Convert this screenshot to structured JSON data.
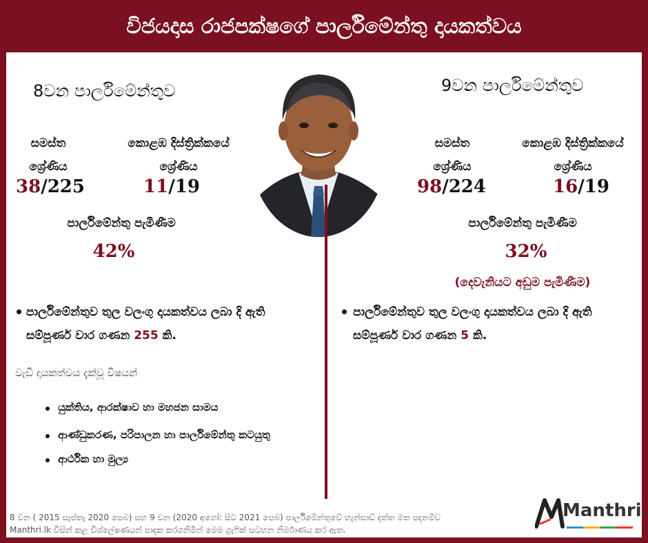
{
  "title": "විජයදාස රාජපක්ෂගේ පාර්ලිමේන්තු දායකත්වය",
  "left": {
    "parliament": "8වන පාර්ලිමේන්තුව",
    "overall_label_1": "සමස්ත",
    "overall_label_2": "ශ්‍රේණිය",
    "overall_rank": "38",
    "overall_total": "/225",
    "district_label_1": "කොළඹ දිස්ත්‍රික්කයේ",
    "district_label_2": "ශ්‍රේණිය",
    "district_rank": "11",
    "district_total": "/19",
    "attendance_label": "පාර්ලිමේන්තු පැමිණීම",
    "attendance": "42%",
    "contrib_text_1": "පාර්ලිමේන්තුව තුල වලංගු දායකත්වය ලබා දි ඇති",
    "contrib_text_2": "සම්පූර්ණ වාර ගණන",
    "contrib_count": "255",
    "contrib_suffix": "කි.",
    "subjects_heading": "වැඩි දායකත්වය දැක්වූ විෂයන්",
    "subjects": [
      "යුක්තිය, ආරක්ෂාව හා මහජන සාමය",
      "ආණ්ඩුකරණ, පරිපාලන හා පාර්ලිමේන්තු කටයුතු",
      "ආර්ථික හා මුල්‍ය"
    ]
  },
  "right": {
    "parliament": "9වන පාර්ලිමේන්තුව",
    "overall_label_1": "සමස්ත",
    "overall_label_2": "ශ්‍රේණිය",
    "overall_rank": "98",
    "overall_total": "/224",
    "district_label_1": "කොළඹ දිස්ත්‍රික්කයේ",
    "district_label_2": "ශ්‍රේණිය",
    "district_rank": "16",
    "district_total": "/19",
    "attendance_label": "පාර්ලිමේන්තු පැමිණීම",
    "attendance": "32%",
    "attendance_note": "(දෙවැනියට අඩුම පැමිණීම)",
    "contrib_text_1": "පාර්ලිමේන්තුව තුල වලංගු දායකත්වය ලබා දි ඇති",
    "contrib_text_2": "සම්පූර්ණ වාර ගණන",
    "contrib_count": "5",
    "contrib_suffix": "කි."
  },
  "footer": {
    "line1": "8 වන ( 2015 සැප්තැ 2020 පෙබ) සහ 9 වන (2020 අගෝ: සිට 2021 පෙබ) පාර්ලිමේන්තුවේ හැන්සාඩ් දත්ත මත පදනම්ව",
    "line2": "Manthri.lk විසින් කළ විශ්ලේෂණයන් පාදක කරගනිමින් මෙම ග්‍රැෆික් සටහන නිර්මාණය කර ඇත."
  },
  "logo": {
    "text": "Manthri.lk"
  },
  "colors": {
    "accent": "#7a1020"
  }
}
